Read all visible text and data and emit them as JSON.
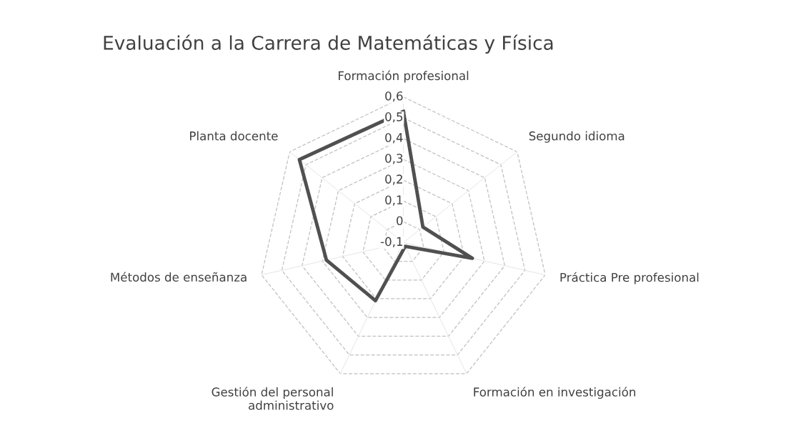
{
  "chart_data": {
    "type": "radar",
    "title": "Evaluación a la Carrera de Matemáticas y Física",
    "categories": [
      "Formación profesional",
      "Segundo idioma",
      "Práctica Pre profesional",
      "Formación en investigación",
      "Gestión del personal\nadministrativo",
      "Métodos de enseñanza",
      "Planta docente"
    ],
    "series": [
      {
        "color": "#505050",
        "values": [
          0.53,
          0.02,
          0.24,
          -0.08,
          0.21,
          0.28,
          0.54
        ]
      }
    ],
    "ylim": [
      -0.1,
      0.6
    ],
    "yticks": [
      {
        "value": -0.1,
        "label": "-0,1"
      },
      {
        "value": 0,
        "label": "0"
      },
      {
        "value": 0.1,
        "label": "0,1"
      },
      {
        "value": 0.2,
        "label": "0,2"
      },
      {
        "value": 0.3,
        "label": "0,3"
      },
      {
        "value": 0.4,
        "label": "0,4"
      },
      {
        "value": 0.5,
        "label": "0,5"
      },
      {
        "value": 0.6,
        "label": "0,6"
      }
    ],
    "grid": true,
    "marker": "none",
    "line_style": "solid"
  }
}
